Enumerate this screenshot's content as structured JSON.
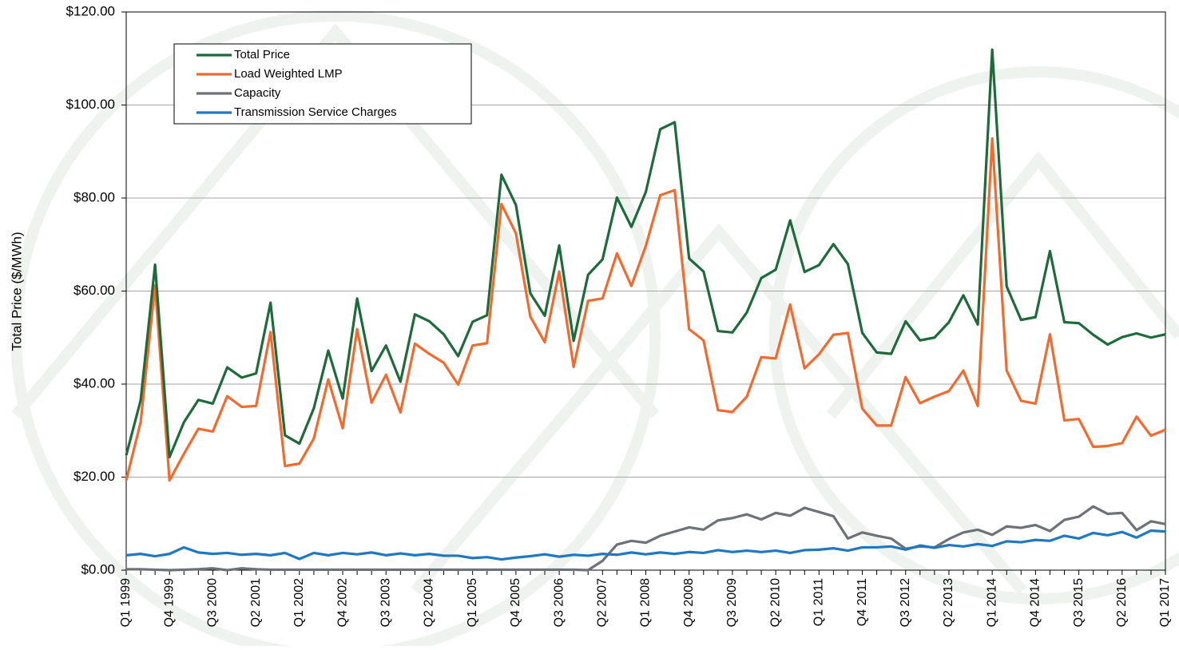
{
  "chart_data": {
    "type": "line",
    "y_label": "Total Price ($/MWh)",
    "categories": [
      "Q1 1999",
      null,
      null,
      "Q4 1999",
      null,
      null,
      "Q3 2000",
      null,
      null,
      "Q2 2001",
      null,
      null,
      "Q1 2002",
      null,
      null,
      "Q4 2002",
      null,
      null,
      "Q3 2003",
      null,
      null,
      "Q2 2004",
      null,
      null,
      "Q1 2005",
      null,
      null,
      "Q4 2005",
      null,
      null,
      "Q3 2006",
      null,
      null,
      "Q2 2007",
      null,
      null,
      "Q1 2008",
      null,
      null,
      "Q4 2008",
      null,
      null,
      "Q3 2009",
      null,
      null,
      "Q2 2010",
      null,
      null,
      "Q1 2011",
      null,
      null,
      "Q4 2011",
      null,
      null,
      "Q3 2012",
      null,
      null,
      "Q2 2013",
      null,
      null,
      "Q1 2014",
      null,
      null,
      "Q4 2014",
      null,
      null,
      "Q3 2015",
      null,
      null,
      "Q2 2016",
      null,
      null,
      "Q1 2017"
    ],
    "series": [
      {
        "name": "Total Price",
        "color": "#1e6b3a",
        "values": [
          24.7,
          36.5,
          65.7,
          24.3,
          31.8,
          36.6,
          35.8,
          43.6,
          41.4,
          42.3,
          57.5,
          29.0,
          27.2,
          34.8,
          47.2,
          36.9,
          58.4,
          42.8,
          48.3,
          40.5,
          55.0,
          53.5,
          50.7,
          46.0,
          53.4,
          54.8,
          85.0,
          78.5,
          59.5,
          54.7,
          69.8,
          49.3,
          63.5,
          66.8,
          80.1,
          73.8,
          81.3,
          94.8,
          96.3,
          67.0,
          64.2,
          51.4,
          51.1,
          55.4,
          62.8,
          64.6,
          75.2,
          64.1,
          65.6,
          70.1,
          65.8,
          51.0,
          46.8,
          46.5,
          53.5,
          49.4,
          50.0,
          53.3,
          59.1,
          52.8,
          111.9,
          61.0,
          53.8,
          54.4,
          68.6,
          53.3,
          53.1,
          50.6,
          48.5,
          50.1,
          50.9,
          50.0,
          50.7
        ]
      },
      {
        "name": "Load Weighted LMP",
        "color": "#f26a2e",
        "values": [
          19.3,
          31.8,
          61.2,
          19.3,
          25.0,
          30.4,
          29.8,
          37.4,
          35.1,
          35.3,
          51.2,
          22.4,
          22.9,
          28.3,
          41.0,
          30.5,
          51.8,
          36.0,
          42.0,
          33.9,
          48.7,
          46.5,
          44.6,
          39.9,
          48.3,
          48.8,
          78.7,
          72.4,
          54.5,
          49.0,
          64.2,
          43.7,
          57.9,
          58.4,
          68.1,
          61.1,
          69.7,
          80.6,
          81.7,
          51.8,
          49.4,
          34.4,
          34.0,
          37.3,
          45.8,
          45.5,
          57.1,
          43.4,
          46.4,
          50.6,
          51.0,
          34.7,
          31.1,
          31.1,
          41.5,
          35.9,
          37.3,
          38.5,
          42.9,
          35.3,
          92.8,
          42.9,
          36.4,
          35.8,
          50.7,
          32.2,
          32.5,
          26.5,
          26.7,
          27.3,
          33.0,
          28.9,
          30.2
        ]
      },
      {
        "name": "Capacity",
        "color": "#6d7278",
        "values": [
          0.2,
          0.2,
          0.1,
          0.0,
          0.1,
          0.2,
          0.4,
          0.0,
          0.4,
          0.2,
          0.1,
          0.1,
          0.1,
          0.1,
          0.1,
          0.1,
          0.1,
          0.1,
          0.1,
          0.1,
          0.1,
          0.1,
          0.1,
          0.1,
          0.1,
          0.1,
          0.1,
          0.1,
          0.1,
          0.1,
          0.1,
          0.1,
          0.0,
          2.0,
          5.5,
          6.3,
          5.9,
          7.4,
          8.3,
          9.2,
          8.7,
          10.7,
          11.2,
          12.0,
          10.9,
          12.3,
          11.7,
          13.4,
          12.5,
          11.6,
          6.8,
          8.1,
          7.4,
          6.8,
          4.6,
          5.1,
          4.9,
          6.7,
          8.1,
          8.7,
          7.6,
          9.4,
          9.1,
          9.7,
          8.4,
          10.8,
          11.5,
          13.7,
          12.1,
          12.3,
          8.6,
          10.5,
          9.9
        ]
      },
      {
        "name": "Transmission Service Charges",
        "color": "#1f78c1",
        "values": [
          3.2,
          3.5,
          3.0,
          3.5,
          4.9,
          3.8,
          3.5,
          3.7,
          3.3,
          3.5,
          3.2,
          3.7,
          2.4,
          3.7,
          3.2,
          3.7,
          3.4,
          3.8,
          3.2,
          3.6,
          3.2,
          3.5,
          3.1,
          3.1,
          2.6,
          2.8,
          2.3,
          2.7,
          3.0,
          3.4,
          2.9,
          3.3,
          3.1,
          3.5,
          3.3,
          3.8,
          3.4,
          3.8,
          3.5,
          3.9,
          3.7,
          4.3,
          3.9,
          4.2,
          3.9,
          4.2,
          3.7,
          4.3,
          4.4,
          4.7,
          4.2,
          4.9,
          4.9,
          5.1,
          4.4,
          5.3,
          4.8,
          5.4,
          5.1,
          5.6,
          5.2,
          6.2,
          6.0,
          6.5,
          6.3,
          7.4,
          6.8,
          8.0,
          7.5,
          8.2,
          7.0,
          8.5,
          8.3
        ]
      }
    ],
    "ylim": [
      0,
      120
    ],
    "yticks": [
      {
        "value": 0,
        "label": "$0.00"
      },
      {
        "value": 20,
        "label": "$20.00"
      },
      {
        "value": 40,
        "label": "$40.00"
      },
      {
        "value": 60,
        "label": "$60.00"
      },
      {
        "value": 80,
        "label": "$80.00"
      },
      {
        "value": 100,
        "label": "$100.00"
      },
      {
        "value": 120,
        "label": "$120.00"
      }
    ],
    "grid": true,
    "legend": "upper-left"
  }
}
